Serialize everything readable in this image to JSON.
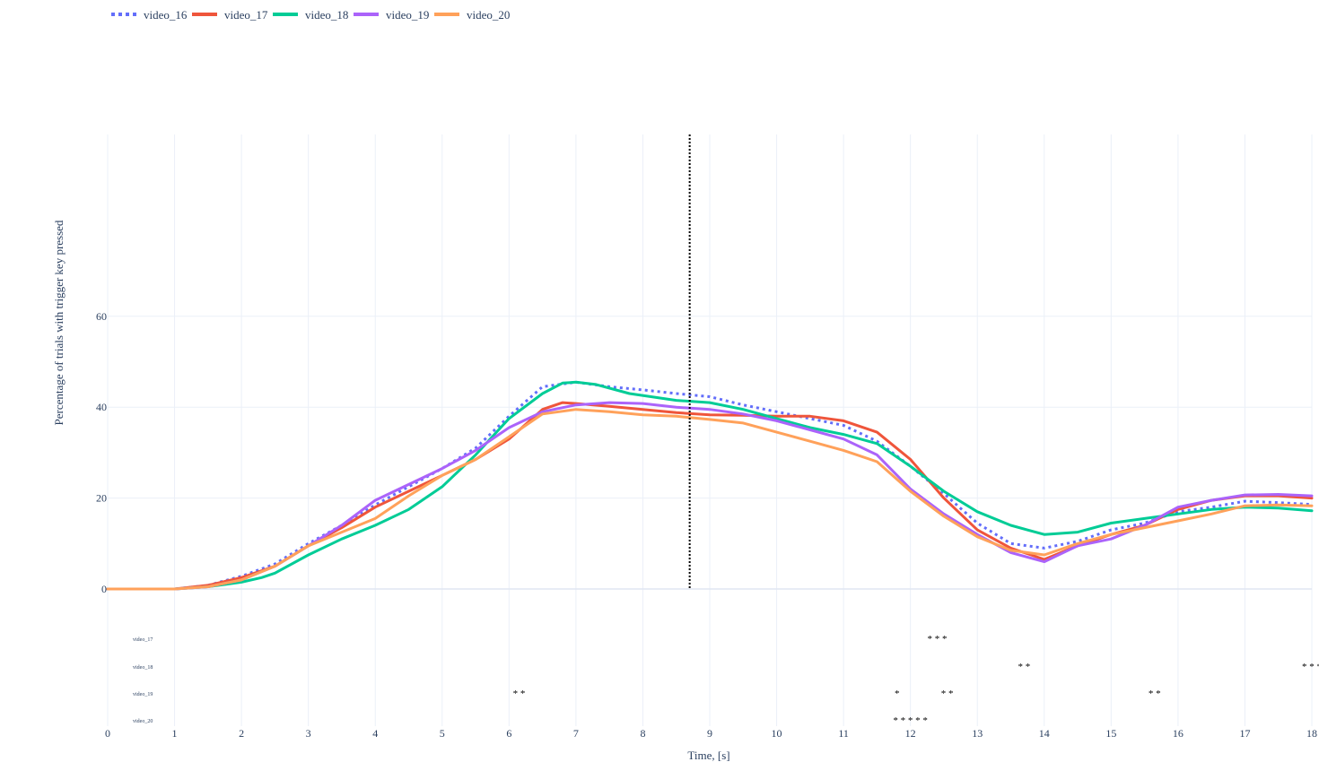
{
  "chart_data": {
    "type": "line",
    "xlabel": "Time, [s]",
    "ylabel": "Percentage of trials with trigger key pressed",
    "xlim": [
      0,
      18
    ],
    "ylim": [
      -30,
      100
    ],
    "x_ticks": [
      "0",
      "1",
      "2",
      "3",
      "4",
      "5",
      "6",
      "7",
      "8",
      "9",
      "10",
      "11",
      "12",
      "13",
      "14",
      "15",
      "16",
      "17",
      "18"
    ],
    "y_ticks": [
      "0",
      "20",
      "40",
      "60"
    ],
    "y_tick_values": [
      0,
      20,
      40,
      60
    ],
    "legend_position": "top-left",
    "grid": true,
    "vertical_marker_x": 8.7,
    "series": [
      {
        "name": "video_16",
        "color": "#636efa",
        "dash": "dot",
        "points": [
          [
            0,
            0
          ],
          [
            1,
            0
          ],
          [
            1.5,
            0.8
          ],
          [
            2,
            2.8
          ],
          [
            2.5,
            5.5
          ],
          [
            3,
            10
          ],
          [
            3.5,
            14
          ],
          [
            4,
            18.5
          ],
          [
            4.5,
            22.5
          ],
          [
            5,
            26.5
          ],
          [
            5.5,
            31
          ],
          [
            6,
            38
          ],
          [
            6.5,
            44.5
          ],
          [
            7,
            45.5
          ],
          [
            7.5,
            44.5
          ],
          [
            8,
            43.8
          ],
          [
            8.5,
            43
          ],
          [
            9,
            42.3
          ],
          [
            9.5,
            40.5
          ],
          [
            10,
            39
          ],
          [
            10.5,
            37.5
          ],
          [
            11,
            36
          ],
          [
            11.5,
            32.5
          ],
          [
            12,
            27
          ],
          [
            12.5,
            21
          ],
          [
            13,
            14.5
          ],
          [
            13.5,
            10
          ],
          [
            14,
            9
          ],
          [
            14.5,
            10.5
          ],
          [
            15,
            13
          ],
          [
            15.5,
            14.5
          ],
          [
            16,
            17
          ],
          [
            16.5,
            18
          ],
          [
            17,
            19.3
          ],
          [
            17.5,
            19
          ],
          [
            18,
            18.6
          ]
        ]
      },
      {
        "name": "video_17",
        "color": "#ef553b",
        "dash": "solid",
        "points": [
          [
            0,
            0
          ],
          [
            1,
            0
          ],
          [
            1.5,
            0.8
          ],
          [
            2,
            2.5
          ],
          [
            2.5,
            5
          ],
          [
            3,
            9.5
          ],
          [
            3.5,
            13.5
          ],
          [
            4,
            18
          ],
          [
            4.5,
            21.5
          ],
          [
            5,
            25
          ],
          [
            5.5,
            28.5
          ],
          [
            6,
            33
          ],
          [
            6.5,
            39.5
          ],
          [
            6.8,
            41
          ],
          [
            7,
            40.8
          ],
          [
            7.5,
            40.2
          ],
          [
            8,
            39.5
          ],
          [
            8.5,
            38.8
          ],
          [
            9,
            38.3
          ],
          [
            9.5,
            38.2
          ],
          [
            10,
            38
          ],
          [
            10.5,
            38
          ],
          [
            11,
            37
          ],
          [
            11.5,
            34.5
          ],
          [
            12,
            28.5
          ],
          [
            12.5,
            20
          ],
          [
            13,
            13
          ],
          [
            13.5,
            9
          ],
          [
            14,
            6.5
          ],
          [
            14.5,
            9.5
          ],
          [
            15,
            12
          ],
          [
            15.5,
            14
          ],
          [
            16,
            17.5
          ],
          [
            16.5,
            19.5
          ],
          [
            17,
            20.5
          ],
          [
            17.5,
            20.5
          ],
          [
            18,
            20
          ]
        ]
      },
      {
        "name": "video_18",
        "color": "#00cc96",
        "dash": "solid",
        "points": [
          [
            0,
            0
          ],
          [
            1,
            0
          ],
          [
            1.5,
            0.5
          ],
          [
            2,
            1.5
          ],
          [
            2.3,
            2.5
          ],
          [
            2.5,
            3.5
          ],
          [
            3,
            7.5
          ],
          [
            3.5,
            11
          ],
          [
            4,
            14
          ],
          [
            4.5,
            17.5
          ],
          [
            5,
            22.5
          ],
          [
            5.5,
            29.5
          ],
          [
            6,
            37.5
          ],
          [
            6.5,
            43
          ],
          [
            6.8,
            45.3
          ],
          [
            7,
            45.5
          ],
          [
            7.3,
            45
          ],
          [
            7.8,
            43
          ],
          [
            8.5,
            41.5
          ],
          [
            9,
            41
          ],
          [
            9.5,
            39.5
          ],
          [
            10,
            37.5
          ],
          [
            10.5,
            35.5
          ],
          [
            11,
            34
          ],
          [
            11.5,
            32
          ],
          [
            12,
            27
          ],
          [
            12.5,
            21.5
          ],
          [
            13,
            17
          ],
          [
            13.5,
            14
          ],
          [
            14,
            12
          ],
          [
            14.5,
            12.5
          ],
          [
            15,
            14.5
          ],
          [
            15.5,
            15.5
          ],
          [
            16,
            16.5
          ],
          [
            16.5,
            17.5
          ],
          [
            17,
            18
          ],
          [
            17.5,
            17.8
          ],
          [
            18,
            17.2
          ]
        ]
      },
      {
        "name": "video_19",
        "color": "#ab63fa",
        "dash": "solid",
        "points": [
          [
            0,
            0
          ],
          [
            1,
            0
          ],
          [
            1.5,
            0.5
          ],
          [
            2,
            2
          ],
          [
            2.5,
            5
          ],
          [
            3,
            9.5
          ],
          [
            3.5,
            14
          ],
          [
            4,
            19.5
          ],
          [
            4.5,
            23
          ],
          [
            5,
            26.5
          ],
          [
            5.5,
            30.5
          ],
          [
            6,
            35.5
          ],
          [
            6.5,
            39
          ],
          [
            7,
            40.5
          ],
          [
            7.5,
            41
          ],
          [
            8,
            40.8
          ],
          [
            8.5,
            40
          ],
          [
            9,
            39.5
          ],
          [
            9.5,
            38.5
          ],
          [
            10,
            37
          ],
          [
            10.5,
            35
          ],
          [
            11,
            33
          ],
          [
            11.5,
            29.5
          ],
          [
            12,
            22
          ],
          [
            12.5,
            16.5
          ],
          [
            13,
            12
          ],
          [
            13.5,
            8
          ],
          [
            14,
            6
          ],
          [
            14.5,
            9.5
          ],
          [
            15,
            11
          ],
          [
            15.5,
            14
          ],
          [
            16,
            18
          ],
          [
            16.5,
            19.5
          ],
          [
            17,
            20.7
          ],
          [
            17.5,
            20.8
          ],
          [
            18,
            20.5
          ]
        ]
      },
      {
        "name": "video_20",
        "color": "#ffa15a",
        "dash": "solid",
        "points": [
          [
            0,
            0
          ],
          [
            1,
            0
          ],
          [
            1.5,
            0.5
          ],
          [
            2,
            2
          ],
          [
            2.5,
            5
          ],
          [
            3,
            9.5
          ],
          [
            3.5,
            12.5
          ],
          [
            4,
            15.5
          ],
          [
            4.5,
            20.5
          ],
          [
            5,
            25
          ],
          [
            5.5,
            28.5
          ],
          [
            6,
            33.5
          ],
          [
            6.5,
            38.5
          ],
          [
            7,
            39.5
          ],
          [
            7.5,
            39
          ],
          [
            8,
            38.3
          ],
          [
            8.5,
            38
          ],
          [
            9,
            37.3
          ],
          [
            9.5,
            36.5
          ],
          [
            10,
            34.5
          ],
          [
            10.5,
            32.5
          ],
          [
            11,
            30.5
          ],
          [
            11.5,
            28
          ],
          [
            12,
            21.5
          ],
          [
            12.5,
            16
          ],
          [
            13,
            11.5
          ],
          [
            13.5,
            8.5
          ],
          [
            14,
            7.5
          ],
          [
            14.5,
            10
          ],
          [
            15,
            12
          ],
          [
            15.5,
            13.5
          ],
          [
            16,
            15
          ],
          [
            16.5,
            16.5
          ],
          [
            17,
            18.3
          ],
          [
            17.5,
            18.5
          ],
          [
            18,
            18.3
          ]
        ]
      }
    ],
    "significance_rows": [
      {
        "label": "video_17",
        "marks": [
          {
            "x": 12.4,
            "text": "* * *"
          }
        ]
      },
      {
        "label": "video_18",
        "marks": [
          {
            "x": 13.7,
            "text": "* *"
          },
          {
            "x": 18.0,
            "text": "* * *"
          }
        ]
      },
      {
        "label": "video_19",
        "marks": [
          {
            "x": 6.15,
            "text": "* *"
          },
          {
            "x": 11.8,
            "text": "*"
          },
          {
            "x": 12.55,
            "text": "* *"
          },
          {
            "x": 15.65,
            "text": "* *"
          }
        ]
      },
      {
        "label": "video_20",
        "marks": [
          {
            "x": 12.0,
            "text": "* * * * *"
          }
        ]
      }
    ]
  }
}
